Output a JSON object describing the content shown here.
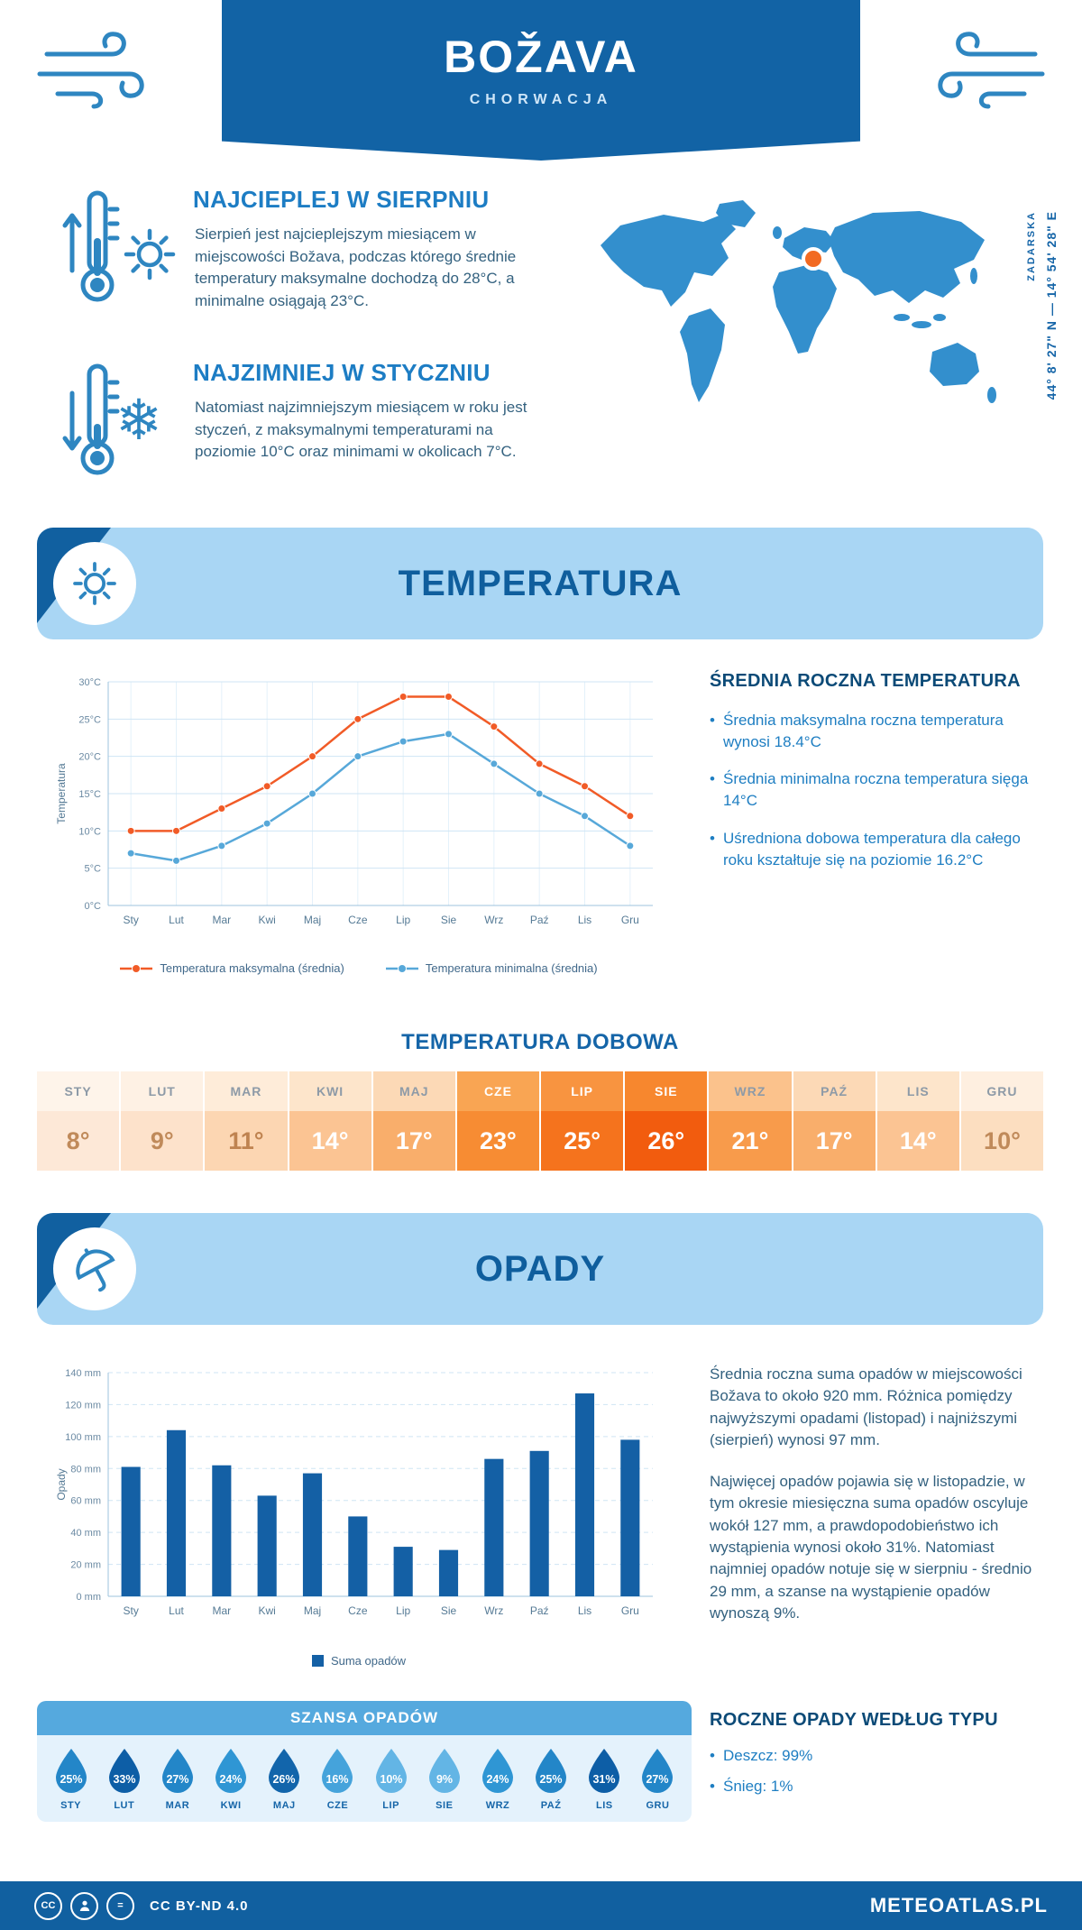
{
  "header": {
    "title": "BOŽAVA",
    "subtitle": "CHORWACJA"
  },
  "icons": {
    "snowflake": "❄"
  },
  "intro": {
    "warm": {
      "heading": "NAJCIEPLEJ W SIERPNIU",
      "text": "Sierpień jest najcieplejszym miesiącem w miejscowości Božava, podczas którego średnie temperatury maksymalne dochodzą do 28°C, a minimalne osiągają 23°C."
    },
    "cold": {
      "heading": "NAJZIMNIEJ W STYCZNIU",
      "text": "Natomiast najzimniejszym miesiącem w roku jest styczeń, z maksymalnymi temperaturami na poziomie 10°C oraz minimami w okolicach 7°C."
    }
  },
  "map": {
    "region": "ZADARSKA",
    "coordinates": "44° 8' 27\" N — 14° 54' 28\" E",
    "marker_color": "#f26a22",
    "land_color": "#338fcd"
  },
  "temperature_section": {
    "title": "TEMPERATURA",
    "summary_heading": "ŚREDNIA ROCZNA TEMPERATURA",
    "bullets": [
      "Średnia maksymalna roczna temperatura wynosi 18.4°C",
      "Średnia minimalna roczna temperatura sięga 14°C",
      "Uśredniona dobowa temperatura dla całego roku kształtuje się na poziomie 16.2°C"
    ]
  },
  "chart_data": [
    {
      "type": "line",
      "title": "Temperatura",
      "ylabel": "Temperatura",
      "xlabel": "",
      "categories": [
        "Sty",
        "Lut",
        "Mar",
        "Kwi",
        "Maj",
        "Cze",
        "Lip",
        "Sie",
        "Wrz",
        "Paź",
        "Lis",
        "Gru"
      ],
      "ylim": [
        0,
        30
      ],
      "ytick_step": 5,
      "ytick_suffix": "°C",
      "grid": true,
      "legend_position": "bottom",
      "series": [
        {
          "name": "Temperatura maksymalna (średnia)",
          "color": "#f15b27",
          "values": [
            10,
            10,
            13,
            16,
            20,
            25,
            28,
            28,
            24,
            19,
            16,
            12
          ]
        },
        {
          "name": "Temperatura minimalna (średnia)",
          "color": "#57a8d9",
          "values": [
            7,
            6,
            8,
            11,
            15,
            20,
            22,
            23,
            19,
            15,
            12,
            8
          ]
        }
      ]
    },
    {
      "type": "bar",
      "title": "Opady",
      "ylabel": "Opady",
      "xlabel": "",
      "categories": [
        "Sty",
        "Lut",
        "Mar",
        "Kwi",
        "Maj",
        "Cze",
        "Lip",
        "Sie",
        "Wrz",
        "Paź",
        "Lis",
        "Gru"
      ],
      "ylim": [
        0,
        140
      ],
      "ytick_step": 20,
      "ytick_suffix": " mm",
      "grid": true,
      "legend_position": "bottom",
      "series": [
        {
          "name": "Suma opadów",
          "color": "#1460a5",
          "values": [
            81,
            104,
            82,
            63,
            77,
            50,
            31,
            29,
            86,
            91,
            127,
            98
          ]
        }
      ]
    }
  ],
  "daily_table": {
    "title": "TEMPERATURA DOBOWA",
    "columns": [
      {
        "label": "STY",
        "value": "8°",
        "cell_bg": "#fde8d7",
        "cell_text": "#c08a5a",
        "header_bg": "#fef4ea",
        "header_text": "#8d9aa7"
      },
      {
        "label": "LUT",
        "value": "9°",
        "cell_bg": "#fde2cb",
        "cell_text": "#c08a5a",
        "header_bg": "#fef1e4",
        "header_text": "#8d9aa7"
      },
      {
        "label": "MAR",
        "value": "11°",
        "cell_bg": "#fcd6b2",
        "cell_text": "#bf8350",
        "header_bg": "#feecd9",
        "header_text": "#8d9aa7"
      },
      {
        "label": "KWI",
        "value": "14°",
        "cell_bg": "#fbc493",
        "cell_text": "#ffffff",
        "header_bg": "#fde5cb",
        "header_text": "#8d9aa7"
      },
      {
        "label": "MAJ",
        "value": "17°",
        "cell_bg": "#f9ae6b",
        "cell_text": "#ffffff",
        "header_bg": "#fcd9b6",
        "header_text": "#8d9aa7"
      },
      {
        "label": "CZE",
        "value": "23°",
        "cell_bg": "#f78c33",
        "cell_text": "#ffffff",
        "header_bg": "#f9a553",
        "header_text": "#ffffff"
      },
      {
        "label": "LIP",
        "value": "25°",
        "cell_bg": "#f5731d",
        "cell_text": "#ffffff",
        "header_bg": "#f89440",
        "header_text": "#ffffff"
      },
      {
        "label": "SIE",
        "value": "26°",
        "cell_bg": "#f25c0e",
        "cell_text": "#ffffff",
        "header_bg": "#f7872e",
        "header_text": "#ffffff"
      },
      {
        "label": "WRZ",
        "value": "21°",
        "cell_bg": "#f89b4b",
        "cell_text": "#ffffff",
        "header_bg": "#fbc28c",
        "header_text": "#8d9aa7"
      },
      {
        "label": "PAŹ",
        "value": "17°",
        "cell_bg": "#f9ae6b",
        "cell_text": "#ffffff",
        "header_bg": "#fcd9b6",
        "header_text": "#8d9aa7"
      },
      {
        "label": "LIS",
        "value": "14°",
        "cell_bg": "#fbc493",
        "cell_text": "#ffffff",
        "header_bg": "#fde5cb",
        "header_text": "#8d9aa7"
      },
      {
        "label": "GRU",
        "value": "10°",
        "cell_bg": "#fcdec0",
        "cell_text": "#c08a5a",
        "header_bg": "#feefe0",
        "header_text": "#8d9aa7"
      }
    ]
  },
  "precipitation_section": {
    "title": "OPADY",
    "paragraphs": [
      "Średnia roczna suma opadów w miejscowości Božava to około 920 mm. Różnica pomiędzy najwyższymi opadami (listopad) i najniższymi (sierpień) wynosi 97 mm.",
      "Najwięcej opadów pojawia się w listopadzie, w tym okresie miesięczna suma opadów oscyluje wokół 127 mm, a prawdopodobieństwo ich wystąpienia wynosi około 31%. Natomiast najmniej opadów notuje się w sierpniu - średnio 29 mm, a szanse na wystąpienie opadów wynoszą 9%."
    ],
    "types_heading": "ROCZNE OPADY WEDŁUG TYPU",
    "types": [
      "Deszcz: 99%",
      "Śnieg: 1%"
    ]
  },
  "rain_chance": {
    "title": "SZANSA OPADÓW",
    "months": [
      {
        "label": "STY",
        "value": "25%",
        "color": "#2386c8"
      },
      {
        "label": "LUT",
        "value": "33%",
        "color": "#0d5ea6"
      },
      {
        "label": "MAR",
        "value": "27%",
        "color": "#2386c8"
      },
      {
        "label": "KWI",
        "value": "24%",
        "color": "#2f96d4"
      },
      {
        "label": "MAJ",
        "value": "26%",
        "color": "#1265ab"
      },
      {
        "label": "CZE",
        "value": "16%",
        "color": "#45a3db"
      },
      {
        "label": "LIP",
        "value": "10%",
        "color": "#63b5e5"
      },
      {
        "label": "SIE",
        "value": "9%",
        "color": "#63b5e5"
      },
      {
        "label": "WRZ",
        "value": "24%",
        "color": "#2f96d4"
      },
      {
        "label": "PAŹ",
        "value": "25%",
        "color": "#2386c8"
      },
      {
        "label": "LIS",
        "value": "31%",
        "color": "#0d5ea6"
      },
      {
        "label": "GRU",
        "value": "27%",
        "color": "#2386c8"
      }
    ]
  },
  "footer": {
    "license": "CC BY-ND 4.0",
    "site": "METEOATLAS.PL"
  }
}
